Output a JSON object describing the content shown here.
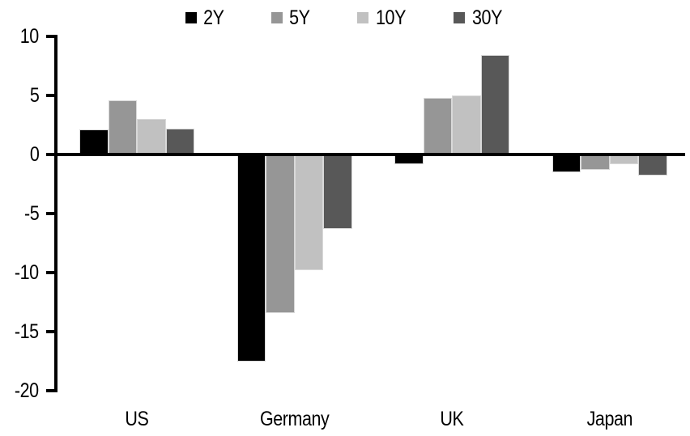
{
  "chart_data": {
    "type": "bar",
    "title": "",
    "categories": [
      "US",
      "Germany",
      "UK",
      "Japan"
    ],
    "series": [
      {
        "name": "2Y",
        "color": "#000000",
        "values": [
          2.1,
          -17.5,
          -0.8,
          -1.5
        ]
      },
      {
        "name": "5Y",
        "color": "#969696",
        "values": [
          4.6,
          -13.4,
          4.8,
          -1.3
        ]
      },
      {
        "name": "10Y",
        "color": "#c1c1c1",
        "values": [
          3.0,
          -9.8,
          5.0,
          -0.8
        ]
      },
      {
        "name": "30Y",
        "color": "#585858",
        "values": [
          2.2,
          -6.3,
          8.4,
          -1.8
        ]
      }
    ],
    "xlabel": "",
    "ylabel": "",
    "yticks": [
      10,
      5,
      0,
      -5,
      -10,
      -15,
      -20
    ],
    "ylim": [
      -20,
      10
    ],
    "grid": false,
    "legend_position": "top-center",
    "axis_color": "#000000",
    "background_color": "#ffffff",
    "bar_border_color": "#d9d9d9"
  }
}
